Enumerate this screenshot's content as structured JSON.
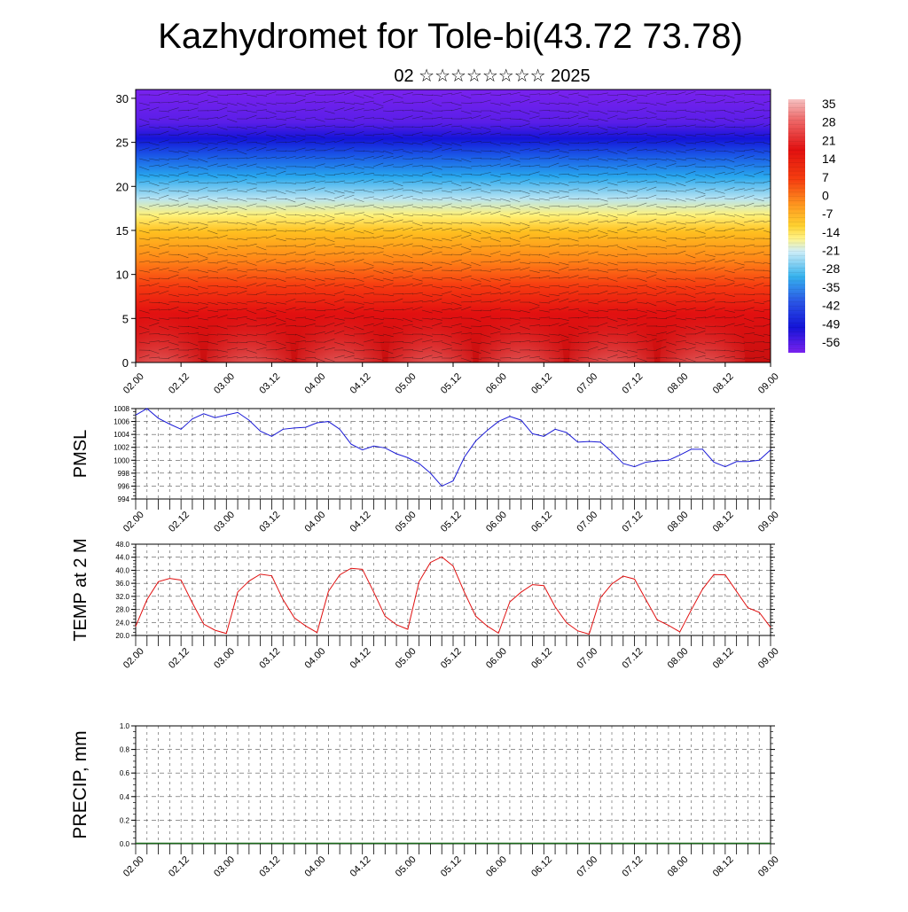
{
  "title": "Kazhydromet for Tole-bi(43.72 73.78)",
  "subtitle": "02 ☆☆☆☆☆☆☆☆ 2025",
  "time_ticks": [
    "02.00",
    "02.12",
    "03.00",
    "03.12",
    "04.00",
    "04.12",
    "05.00",
    "05.12",
    "06.00",
    "06.12",
    "07.00",
    "07.12",
    "08.00",
    "08.12",
    "09.00"
  ],
  "chart_data": [
    {
      "type": "heatmap",
      "name": "upper-air-temperature-wind",
      "x": [
        "02.00",
        "02.12",
        "03.00",
        "03.12",
        "04.00",
        "04.12",
        "05.00",
        "05.12",
        "06.00",
        "06.12",
        "07.00",
        "07.12",
        "08.00",
        "08.12",
        "09.00"
      ],
      "ylim": [
        0,
        31
      ],
      "yticks": [
        0,
        5,
        10,
        15,
        20,
        25,
        30
      ],
      "colorbar": {
        "labels": [
          "35",
          "28",
          "21",
          "14",
          "7",
          "0",
          "-7",
          "-14",
          "-21",
          "-28",
          "-35",
          "-42",
          "-49",
          "-56"
        ],
        "range": [
          -62,
          38
        ]
      },
      "notes": "Temperature increases downward; surface layer reaches ~35 with diurnal warm domes; coldest (~-56) near 24-26 km; wind barbs throughout."
    },
    {
      "type": "line",
      "ylabel": "PMSL",
      "ylim": [
        994,
        1008
      ],
      "yticks": [
        "994",
        "996",
        "998",
        "1000",
        "1002",
        "1004",
        "1006",
        "1008"
      ],
      "color": "#1a1ad6",
      "x_steps_per_day": 8,
      "values": [
        1007.0,
        1008.0,
        1006.5,
        1005.6,
        1004.8,
        1006.4,
        1007.2,
        1006.6,
        1007.0,
        1007.4,
        1006.2,
        1004.5,
        1003.7,
        1004.8,
        1005.0,
        1005.1,
        1005.8,
        1006.0,
        1004.8,
        1002.5,
        1001.6,
        1002.2,
        1001.9,
        1001.0,
        1000.4,
        999.5,
        998.0,
        996.0,
        996.8,
        1000.5,
        1003.0,
        1004.6,
        1006.0,
        1006.8,
        1006.2,
        1004.1,
        1003.7,
        1004.8,
        1004.3,
        1002.8,
        1002.9,
        1002.8,
        1001.3,
        999.5,
        999.0,
        999.7,
        999.9,
        1000.0,
        1000.8,
        1001.7,
        1001.7,
        999.7,
        999.0,
        999.8,
        999.8,
        1000.0,
        1001.6
      ]
    },
    {
      "type": "line",
      "ylabel": "TEMP at 2 M",
      "ylim": [
        20,
        48
      ],
      "yticks": [
        "20.0",
        "24.0",
        "28.0",
        "32.0",
        "36.0",
        "40.0",
        "44.0",
        "48.0"
      ],
      "color": "#e01010",
      "x_steps_per_day": 8,
      "values": [
        22.8,
        31.0,
        36.5,
        37.5,
        37.0,
        30.0,
        23.5,
        21.6,
        20.6,
        33.3,
        36.7,
        38.8,
        38.3,
        31.0,
        25.4,
        22.9,
        20.9,
        33.5,
        38.6,
        40.6,
        40.3,
        33.3,
        25.9,
        23.3,
        21.9,
        36.5,
        42.4,
        44.1,
        41.3,
        33.2,
        25.9,
        22.9,
        20.7,
        30.3,
        33.3,
        35.6,
        35.3,
        28.8,
        23.9,
        21.4,
        20.4,
        31.6,
        35.8,
        38.2,
        37.3,
        31.0,
        24.8,
        23.1,
        21.1,
        27.8,
        34.2,
        38.7,
        38.6,
        33.5,
        28.5,
        27.1,
        22.5
      ]
    },
    {
      "type": "bar",
      "ylabel": "PRECIP, mm",
      "ylim": [
        0,
        1
      ],
      "yticks": [
        "0.0",
        "0.2",
        "0.4",
        "0.6",
        "0.8",
        "1.0"
      ],
      "color": "#1a6b1a",
      "x_steps_per_day": 8,
      "values": [
        0,
        0,
        0,
        0,
        0,
        0,
        0,
        0,
        0,
        0,
        0,
        0,
        0,
        0,
        0,
        0,
        0,
        0,
        0,
        0,
        0,
        0,
        0,
        0,
        0,
        0,
        0,
        0,
        0,
        0,
        0,
        0,
        0,
        0,
        0,
        0,
        0,
        0,
        0,
        0,
        0,
        0,
        0,
        0,
        0,
        0,
        0,
        0,
        0,
        0,
        0,
        0,
        0,
        0,
        0,
        0,
        0
      ]
    }
  ]
}
